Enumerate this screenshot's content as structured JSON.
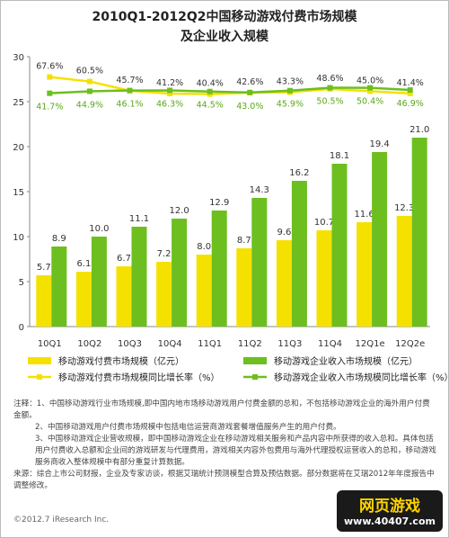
{
  "chart_data": {
    "type": "bar",
    "title": "2010Q1-2012Q2中国移动游戏付费市场规模",
    "subtitle": "及企业收入规模",
    "categories": [
      "10Q1",
      "10Q2",
      "10Q3",
      "10Q4",
      "11Q1",
      "11Q2",
      "11Q3",
      "11Q4",
      "12Q1e",
      "12Q2e"
    ],
    "ylim": [
      0,
      30
    ],
    "yticks": [
      0,
      5,
      10,
      15,
      20,
      25,
      30
    ],
    "y2lim": [
      -330,
      100
    ],
    "series": [
      {
        "name": "移动游戏付费市场规模（亿元）",
        "color": "#f5e100",
        "values": [
          5.7,
          6.1,
          6.7,
          7.2,
          8.0,
          8.7,
          9.6,
          10.7,
          11.6,
          12.3
        ],
        "value_labels": [
          "5.7",
          "6.1",
          "6.7",
          "7.2",
          "8.0",
          "8.7",
          "9.6",
          "10.7",
          "11.6",
          "12.3"
        ]
      },
      {
        "name": "移动游戏企业收入市场规模（亿元）",
        "color": "#6cbf1e",
        "values": [
          8.9,
          10.0,
          11.1,
          12.0,
          12.9,
          14.3,
          16.2,
          18.1,
          19.4,
          21.0
        ],
        "value_labels": [
          "8.9",
          "10.0",
          "11.1",
          "12.0",
          "12.9",
          "14.3",
          "16.2",
          "18.1",
          "19.4",
          "21.0"
        ]
      },
      {
        "name": "移动游戏付费市场规模同比增长率（%）",
        "type": "line",
        "axis": "y2",
        "color": "#f5e100",
        "values": [
          67.6,
          60.5,
          45.7,
          41.2,
          40.4,
          42.6,
          43.3,
          48.6,
          45.0,
          41.4
        ],
        "value_labels": [
          "67.6%",
          "60.5%",
          "45.7%",
          "41.2%",
          "40.4%",
          "42.6%",
          "43.3%",
          "48.6%",
          "45.0%",
          "41.4%"
        ]
      },
      {
        "name": "移动游戏企业收入市场规模同比增长率（%）",
        "type": "line",
        "axis": "y2",
        "color": "#6cbf1e",
        "values": [
          41.7,
          44.9,
          46.1,
          46.3,
          44.5,
          43.0,
          45.9,
          50.5,
          50.4,
          46.9
        ],
        "value_labels": [
          "41.7%",
          "44.9%",
          "46.1%",
          "46.3%",
          "44.5%",
          "43.0%",
          "45.9%",
          "50.5%",
          "50.4%",
          "46.9%"
        ]
      }
    ],
    "notes": [
      "注释：1、中国移动游戏行业市场规模,即中国内地市场移动游戏用户付费金额的总和，不包括移动游戏企业的海外用户付费金额。",
      "2、中国移动游戏用户付费市场规模中包括电信运营商游戏套餐增值服务产生的用户付费。",
      "3、中国移动游戏企业营收规模，即中国移动游戏企业在移动游戏相关服务和产品内容中所获得的收入总和。具体包括用户付费收入总额和企业间的游戏研发与代理费用，游戏相关内容外包费用与海外代理授权运营收入的总和，移动游戏服务商收入整体规模中有部分重复计算数据。",
      "来源：综合上市公司财报，企业及专家访谈，根据艾瑞统计预测模型合算及预估数据。部分数据将在艾瑞2012年年度报告中调整修改。"
    ],
    "copyright": "©2012.7 iResearch Inc.",
    "logo_title": "网页游戏",
    "logo_url": "www.40407.com"
  }
}
